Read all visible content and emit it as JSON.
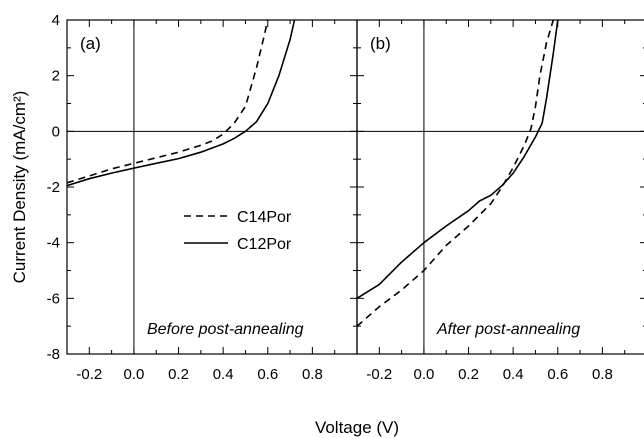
{
  "chart_data": [
    {
      "type": "line",
      "panel_label": "(a)",
      "annotation": "Before post-annealing",
      "xlabel": "Voltage (V)",
      "ylabel": "Current Density (mA/cm²)",
      "xlim": [
        -0.3,
        1.0
      ],
      "ylim": [
        -8,
        4
      ],
      "xticks": [
        "-0.2",
        "0.0",
        "0.2",
        "0.4",
        "0.6",
        "0.8"
      ],
      "yticks": [
        "-8",
        "-6",
        "-4",
        "-2",
        "0",
        "2",
        "4"
      ],
      "legend": {
        "position": "center-left",
        "entries": [
          "C14Por",
          "C12Por"
        ]
      },
      "series": [
        {
          "name": "C14Por",
          "style": "dashed",
          "x": [
            -0.3,
            -0.2,
            -0.1,
            0.0,
            0.1,
            0.2,
            0.3,
            0.35,
            0.4,
            0.45,
            0.5,
            0.55,
            0.58,
            0.6
          ],
          "y": [
            -1.85,
            -1.6,
            -1.35,
            -1.15,
            -0.95,
            -0.75,
            -0.5,
            -0.35,
            -0.1,
            0.3,
            0.9,
            2.3,
            3.3,
            4.0
          ]
        },
        {
          "name": "C12Por",
          "style": "solid",
          "x": [
            -0.3,
            -0.2,
            -0.1,
            0.0,
            0.1,
            0.2,
            0.3,
            0.4,
            0.45,
            0.5,
            0.55,
            0.6,
            0.65,
            0.7,
            0.72
          ],
          "y": [
            -1.95,
            -1.7,
            -1.5,
            -1.32,
            -1.15,
            -0.98,
            -0.75,
            -0.45,
            -0.25,
            0.0,
            0.35,
            1.0,
            2.0,
            3.3,
            4.0
          ]
        }
      ]
    },
    {
      "type": "line",
      "panel_label": "(b)",
      "annotation": "After post-annealing",
      "xlabel": "Voltage (V)",
      "xlim": [
        -0.3,
        1.0
      ],
      "ylim": [
        -8,
        4
      ],
      "xticks": [
        "-0.2",
        "0.0",
        "0.2",
        "0.4",
        "0.6",
        "0.8"
      ],
      "series": [
        {
          "name": "C14Por",
          "style": "dashed",
          "x": [
            -0.3,
            -0.2,
            -0.1,
            0.0,
            0.1,
            0.2,
            0.3,
            0.35,
            0.4,
            0.45,
            0.48,
            0.5,
            0.52,
            0.55,
            0.58
          ],
          "y": [
            -7.0,
            -6.3,
            -5.7,
            -5.0,
            -4.1,
            -3.4,
            -2.6,
            -2.0,
            -1.3,
            -0.5,
            0.1,
            0.9,
            2.0,
            3.2,
            4.0
          ]
        },
        {
          "name": "C12Por",
          "style": "solid",
          "x": [
            -0.3,
            -0.2,
            -0.1,
            0.0,
            0.1,
            0.2,
            0.25,
            0.3,
            0.35,
            0.4,
            0.45,
            0.5,
            0.53,
            0.55,
            0.58,
            0.6
          ],
          "y": [
            -6.0,
            -5.5,
            -4.7,
            -4.0,
            -3.4,
            -2.85,
            -2.5,
            -2.3,
            -1.95,
            -1.5,
            -0.9,
            -0.2,
            0.3,
            1.2,
            2.8,
            4.0
          ]
        }
      ]
    }
  ]
}
